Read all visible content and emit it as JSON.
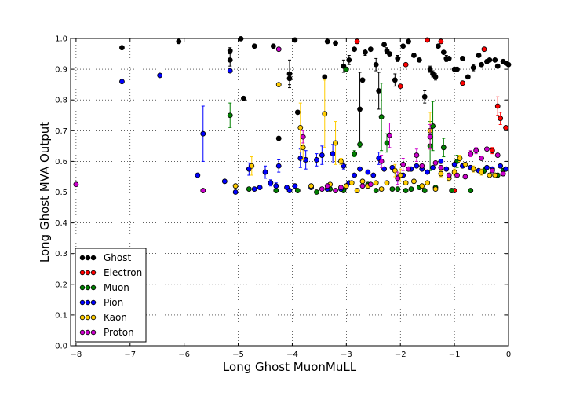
{
  "chart_data": {
    "type": "scatter",
    "xlabel": "Long Ghost MuonMuLL",
    "ylabel": "Long Ghost MVA Output",
    "xlim": [
      -8.1,
      0
    ],
    "ylim": [
      0.0,
      1.0
    ],
    "xticks": [
      "−8",
      "−7",
      "−6",
      "−5",
      "−4",
      "−3",
      "−2",
      "−1",
      "0"
    ],
    "yticks": [
      "0.0",
      "0.1",
      "0.2",
      "0.3",
      "0.4",
      "0.5",
      "0.6",
      "0.7",
      "0.8",
      "0.9",
      "1.0"
    ],
    "grid": true,
    "legend_position": "lower-left",
    "error_bars": true,
    "series": [
      {
        "name": "Ghost",
        "color": "#000000",
        "points": [
          [
            -7.15,
            0.97,
            0.005
          ],
          [
            -6.1,
            0.99,
            0.005
          ],
          [
            -5.15,
            0.93,
            0.02
          ],
          [
            -5.15,
            0.96,
            0.01
          ],
          [
            -4.95,
            0.999,
            0.003
          ],
          [
            -4.9,
            0.805,
            0.005
          ],
          [
            -4.7,
            0.975,
            0.005
          ],
          [
            -4.35,
            0.975,
            0.005
          ],
          [
            -4.25,
            0.675,
            0.005
          ],
          [
            -4.05,
            0.885,
            0.045
          ],
          [
            -4.05,
            0.87,
            0.02
          ],
          [
            -3.95,
            0.995,
            0.005
          ],
          [
            -3.9,
            0.76,
            0.005
          ],
          [
            -3.4,
            0.875,
            0.005
          ],
          [
            -3.35,
            0.99,
            0.005
          ],
          [
            -3.2,
            0.985,
            0.005
          ],
          [
            -3.05,
            0.91,
            0.02
          ],
          [
            -2.95,
            0.93,
            0.015
          ],
          [
            -2.85,
            0.965,
            0.005
          ],
          [
            -2.75,
            0.77,
            0.12
          ],
          [
            -2.7,
            0.865,
            0.005
          ],
          [
            -2.65,
            0.955,
            0.01
          ],
          [
            -2.55,
            0.965,
            0.005
          ],
          [
            -2.45,
            0.915,
            0.02
          ],
          [
            -2.4,
            0.83,
            0.06
          ],
          [
            -2.3,
            0.98,
            0.005
          ],
          [
            -2.25,
            0.96,
            0.01
          ],
          [
            -2.2,
            0.95,
            0.005
          ],
          [
            -2.1,
            0.865,
            0.02
          ],
          [
            -2.05,
            0.935,
            0.01
          ],
          [
            -1.95,
            0.975,
            0.005
          ],
          [
            -1.85,
            0.99,
            0.005
          ],
          [
            -1.75,
            0.945,
            0.005
          ],
          [
            -1.65,
            0.93,
            0.005
          ],
          [
            -1.55,
            0.81,
            0.02
          ],
          [
            -1.45,
            0.9,
            0.01
          ],
          [
            -1.4,
            0.885,
            0.01
          ],
          [
            -1.35,
            0.875,
            0.01
          ],
          [
            -1.3,
            0.975,
            0.005
          ],
          [
            -1.2,
            0.955,
            0.005
          ],
          [
            -1.15,
            0.935,
            0.01
          ],
          [
            -1.1,
            0.935,
            0.005
          ],
          [
            -1.0,
            0.9,
            0.005
          ],
          [
            -0.95,
            0.9,
            0.005
          ],
          [
            -0.85,
            0.935,
            0.005
          ],
          [
            -0.75,
            0.875,
            0.005
          ],
          [
            -0.65,
            0.905,
            0.01
          ],
          [
            -0.55,
            0.945,
            0.005
          ],
          [
            -0.5,
            0.915,
            0.005
          ],
          [
            -0.4,
            0.925,
            0.005
          ],
          [
            -0.35,
            0.93,
            0.005
          ],
          [
            -0.25,
            0.93,
            0.005
          ],
          [
            -0.2,
            0.91,
            0.005
          ],
          [
            -0.1,
            0.925,
            0.005
          ],
          [
            -0.05,
            0.92,
            0.005
          ],
          [
            0.0,
            0.915,
            0.005
          ]
        ]
      },
      {
        "name": "Electron",
        "color": "#ff0000",
        "points": [
          [
            -2.8,
            0.99,
            0.005
          ],
          [
            -2.0,
            0.845,
            0.005
          ],
          [
            -1.9,
            0.915,
            0.005
          ],
          [
            -1.5,
            0.995,
            0.005
          ],
          [
            -1.25,
            0.99,
            0.005
          ],
          [
            -0.85,
            0.855,
            0.005
          ],
          [
            -0.45,
            0.965,
            0.005
          ],
          [
            -0.2,
            0.78,
            0.03
          ],
          [
            -0.15,
            0.74,
            0.02
          ],
          [
            -0.05,
            0.71,
            0.005
          ],
          [
            -1.0,
            0.505,
            0.005
          ],
          [
            -0.3,
            0.635,
            0.01
          ]
        ]
      },
      {
        "name": "Muon",
        "color": "#008000",
        "points": [
          [
            -5.15,
            0.75,
            0.04
          ],
          [
            -4.8,
            0.51,
            0.005
          ],
          [
            -4.3,
            0.505,
            0.005
          ],
          [
            -3.9,
            0.505,
            0.005
          ],
          [
            -3.55,
            0.5,
            0.005
          ],
          [
            -3.3,
            0.51,
            0.005
          ],
          [
            -3.05,
            0.505,
            0.005
          ],
          [
            -3.0,
            0.9,
            0.005
          ],
          [
            -2.85,
            0.625,
            0.01
          ],
          [
            -2.75,
            0.655,
            0.01
          ],
          [
            -2.6,
            0.525,
            0.005
          ],
          [
            -2.45,
            0.505,
            0.005
          ],
          [
            -2.35,
            0.745,
            0.11
          ],
          [
            -2.25,
            0.66,
            0.03
          ],
          [
            -2.15,
            0.51,
            0.005
          ],
          [
            -2.05,
            0.51,
            0.005
          ],
          [
            -1.9,
            0.505,
            0.005
          ],
          [
            -1.8,
            0.51,
            0.005
          ],
          [
            -1.65,
            0.515,
            0.005
          ],
          [
            -1.55,
            0.505,
            0.005
          ],
          [
            -1.45,
            0.65,
            0.08
          ],
          [
            -1.4,
            0.715,
            0.08
          ],
          [
            -1.35,
            0.515,
            0.005
          ],
          [
            -1.2,
            0.645,
            0.03
          ],
          [
            -1.05,
            0.505,
            0.005
          ],
          [
            -0.95,
            0.6,
            0.02
          ],
          [
            -0.7,
            0.505,
            0.005
          ],
          [
            -0.45,
            0.57,
            0.01
          ],
          [
            -0.2,
            0.555,
            0.005
          ],
          [
            -0.1,
            0.57,
            0.005
          ]
        ]
      },
      {
        "name": "Pion",
        "color": "#0000ff",
        "points": [
          [
            -7.15,
            0.86,
            0.005
          ],
          [
            -6.45,
            0.88,
            0.005
          ],
          [
            -5.75,
            0.555,
            0.005
          ],
          [
            -5.65,
            0.69,
            0.09
          ],
          [
            -5.25,
            0.535,
            0.005
          ],
          [
            -5.15,
            0.895,
            0.005
          ],
          [
            -5.05,
            0.5,
            0.005
          ],
          [
            -4.8,
            0.575,
            0.02
          ],
          [
            -4.7,
            0.51,
            0.005
          ],
          [
            -4.6,
            0.515,
            0.005
          ],
          [
            -4.5,
            0.565,
            0.02
          ],
          [
            -4.4,
            0.53,
            0.01
          ],
          [
            -4.3,
            0.52,
            0.01
          ],
          [
            -4.25,
            0.585,
            0.02
          ],
          [
            -4.1,
            0.515,
            0.005
          ],
          [
            -4.05,
            0.505,
            0.005
          ],
          [
            -3.95,
            0.52,
            0.005
          ],
          [
            -3.85,
            0.61,
            0.03
          ],
          [
            -3.75,
            0.605,
            0.03
          ],
          [
            -3.65,
            0.515,
            0.005
          ],
          [
            -3.55,
            0.605,
            0.02
          ],
          [
            -3.45,
            0.62,
            0.03
          ],
          [
            -3.35,
            0.51,
            0.005
          ],
          [
            -3.25,
            0.625,
            0.03
          ],
          [
            -3.1,
            0.51,
            0.005
          ],
          [
            -3.05,
            0.585,
            0.01
          ],
          [
            -2.95,
            0.53,
            0.005
          ],
          [
            -2.85,
            0.555,
            0.005
          ],
          [
            -2.75,
            0.575,
            0.005
          ],
          [
            -2.6,
            0.565,
            0.005
          ],
          [
            -2.5,
            0.555,
            0.005
          ],
          [
            -2.4,
            0.61,
            0.02
          ],
          [
            -2.3,
            0.575,
            0.005
          ],
          [
            -2.15,
            0.58,
            0.005
          ],
          [
            -2.05,
            0.545,
            0.01
          ],
          [
            -1.95,
            0.555,
            0.005
          ],
          [
            -1.8,
            0.575,
            0.005
          ],
          [
            -1.7,
            0.585,
            0.005
          ],
          [
            -1.6,
            0.575,
            0.005
          ],
          [
            -1.5,
            0.565,
            0.005
          ],
          [
            -1.4,
            0.58,
            0.005
          ],
          [
            -1.25,
            0.6,
            0.005
          ],
          [
            -1.15,
            0.575,
            0.005
          ],
          [
            -1.0,
            0.59,
            0.005
          ],
          [
            -0.85,
            0.585,
            0.005
          ],
          [
            -0.7,
            0.58,
            0.005
          ],
          [
            -0.55,
            0.57,
            0.005
          ],
          [
            -0.4,
            0.58,
            0.005
          ],
          [
            -0.3,
            0.575,
            0.005
          ],
          [
            -0.15,
            0.585,
            0.005
          ],
          [
            -0.05,
            0.575,
            0.005
          ]
        ]
      },
      {
        "name": "Kaon",
        "color": "#ffcc00",
        "points": [
          [
            -5.05,
            0.52,
            0.005
          ],
          [
            -4.75,
            0.585,
            0.03
          ],
          [
            -4.25,
            0.85,
            0.005
          ],
          [
            -3.85,
            0.71,
            0.08
          ],
          [
            -3.8,
            0.645,
            0.04
          ],
          [
            -3.65,
            0.52,
            0.005
          ],
          [
            -3.4,
            0.755,
            0.11
          ],
          [
            -3.3,
            0.525,
            0.005
          ],
          [
            -3.2,
            0.66,
            0.07
          ],
          [
            -3.1,
            0.6,
            0.01
          ],
          [
            -3.0,
            0.52,
            0.005
          ],
          [
            -2.9,
            0.53,
            0.005
          ],
          [
            -2.8,
            0.505,
            0.005
          ],
          [
            -2.7,
            0.535,
            0.005
          ],
          [
            -2.6,
            0.52,
            0.005
          ],
          [
            -2.45,
            0.53,
            0.005
          ],
          [
            -2.35,
            0.51,
            0.005
          ],
          [
            -2.25,
            0.53,
            0.005
          ],
          [
            -2.1,
            0.57,
            0.02
          ],
          [
            -2.0,
            0.555,
            0.02
          ],
          [
            -1.9,
            0.53,
            0.005
          ],
          [
            -1.75,
            0.535,
            0.005
          ],
          [
            -1.6,
            0.52,
            0.005
          ],
          [
            -1.5,
            0.53,
            0.005
          ],
          [
            -1.45,
            0.7,
            0.06
          ],
          [
            -1.35,
            0.51,
            0.005
          ],
          [
            -1.25,
            0.56,
            0.01
          ],
          [
            -1.1,
            0.545,
            0.01
          ],
          [
            -1.0,
            0.565,
            0.01
          ],
          [
            -0.9,
            0.61,
            0.01
          ],
          [
            -0.8,
            0.59,
            0.005
          ],
          [
            -0.65,
            0.575,
            0.01
          ],
          [
            -0.5,
            0.565,
            0.01
          ],
          [
            -0.35,
            0.555,
            0.005
          ],
          [
            -0.25,
            0.555,
            0.005
          ],
          [
            -0.1,
            0.56,
            0.005
          ]
        ]
      },
      {
        "name": "Proton",
        "color": "#cc00cc",
        "points": [
          [
            -8.0,
            0.525,
            0.005
          ],
          [
            -5.65,
            0.505,
            0.005
          ],
          [
            -4.25,
            0.965,
            0.005
          ],
          [
            -3.8,
            0.68,
            0.02
          ],
          [
            -3.45,
            0.51,
            0.005
          ],
          [
            -3.35,
            0.52,
            0.005
          ],
          [
            -3.2,
            0.505,
            0.005
          ],
          [
            -3.1,
            0.515,
            0.005
          ],
          [
            -2.7,
            0.52,
            0.005
          ],
          [
            -2.55,
            0.525,
            0.005
          ],
          [
            -2.35,
            0.6,
            0.02
          ],
          [
            -2.2,
            0.685,
            0.04
          ],
          [
            -2.05,
            0.545,
            0.02
          ],
          [
            -1.95,
            0.59,
            0.02
          ],
          [
            -1.85,
            0.575,
            0.005
          ],
          [
            -1.7,
            0.62,
            0.02
          ],
          [
            -1.6,
            0.585,
            0.005
          ],
          [
            -1.45,
            0.68,
            0.04
          ],
          [
            -1.35,
            0.595,
            0.005
          ],
          [
            -1.25,
            0.58,
            0.005
          ],
          [
            -1.1,
            0.555,
            0.005
          ],
          [
            -0.95,
            0.555,
            0.005
          ],
          [
            -0.8,
            0.55,
            0.005
          ],
          [
            -0.7,
            0.625,
            0.01
          ],
          [
            -0.6,
            0.635,
            0.01
          ],
          [
            -0.5,
            0.61,
            0.005
          ],
          [
            -0.4,
            0.64,
            0.005
          ],
          [
            -0.3,
            0.57,
            0.005
          ],
          [
            -0.2,
            0.62,
            0.005
          ],
          [
            -0.1,
            0.56,
            0.005
          ]
        ]
      }
    ]
  }
}
